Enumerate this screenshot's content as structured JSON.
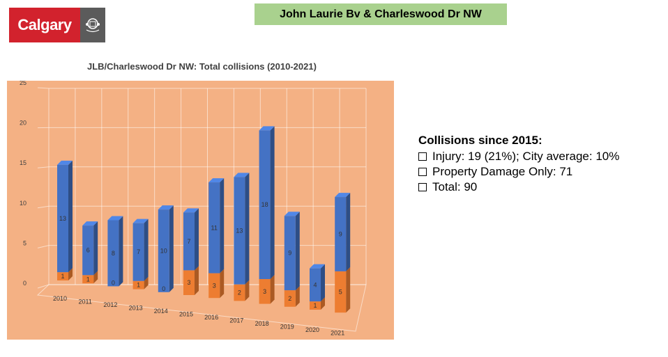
{
  "logo": {
    "text": "Calgary"
  },
  "header": {
    "title": "John Laurie Bv & Charleswood Dr NW"
  },
  "colors": {
    "blue": "#4472c4",
    "orange": "#ed7d31",
    "background": "#f4b184",
    "title_bg": "#a9d18e"
  },
  "notes": {
    "heading": "Collisions since 2015:",
    "items": [
      "Injury: 19 (21%); City average: 10%",
      "Property Damage Only: 71",
      "Total: 90"
    ]
  },
  "chart_data": {
    "type": "bar",
    "stacked": true,
    "style": "3d",
    "title": "JLB/Charleswood Dr NW: Total collisions (2010-2021)",
    "categories": [
      "2010",
      "2011",
      "2012",
      "2013",
      "2014",
      "2015",
      "2016",
      "2017",
      "2018",
      "2019",
      "2020",
      "2021"
    ],
    "series": [
      {
        "color": "#ed7d31",
        "values": [
          1,
          1,
          0,
          1,
          0,
          3,
          3,
          2,
          3,
          2,
          1,
          5
        ]
      },
      {
        "color": "#4472c4",
        "values": [
          13,
          6,
          8,
          7,
          10,
          7,
          11,
          13,
          18,
          9,
          4,
          9
        ]
      }
    ],
    "ylim": [
      0,
      25
    ],
    "yticks": [
      0,
      5,
      10,
      15,
      20,
      25
    ],
    "grid": true,
    "legend": "none"
  }
}
